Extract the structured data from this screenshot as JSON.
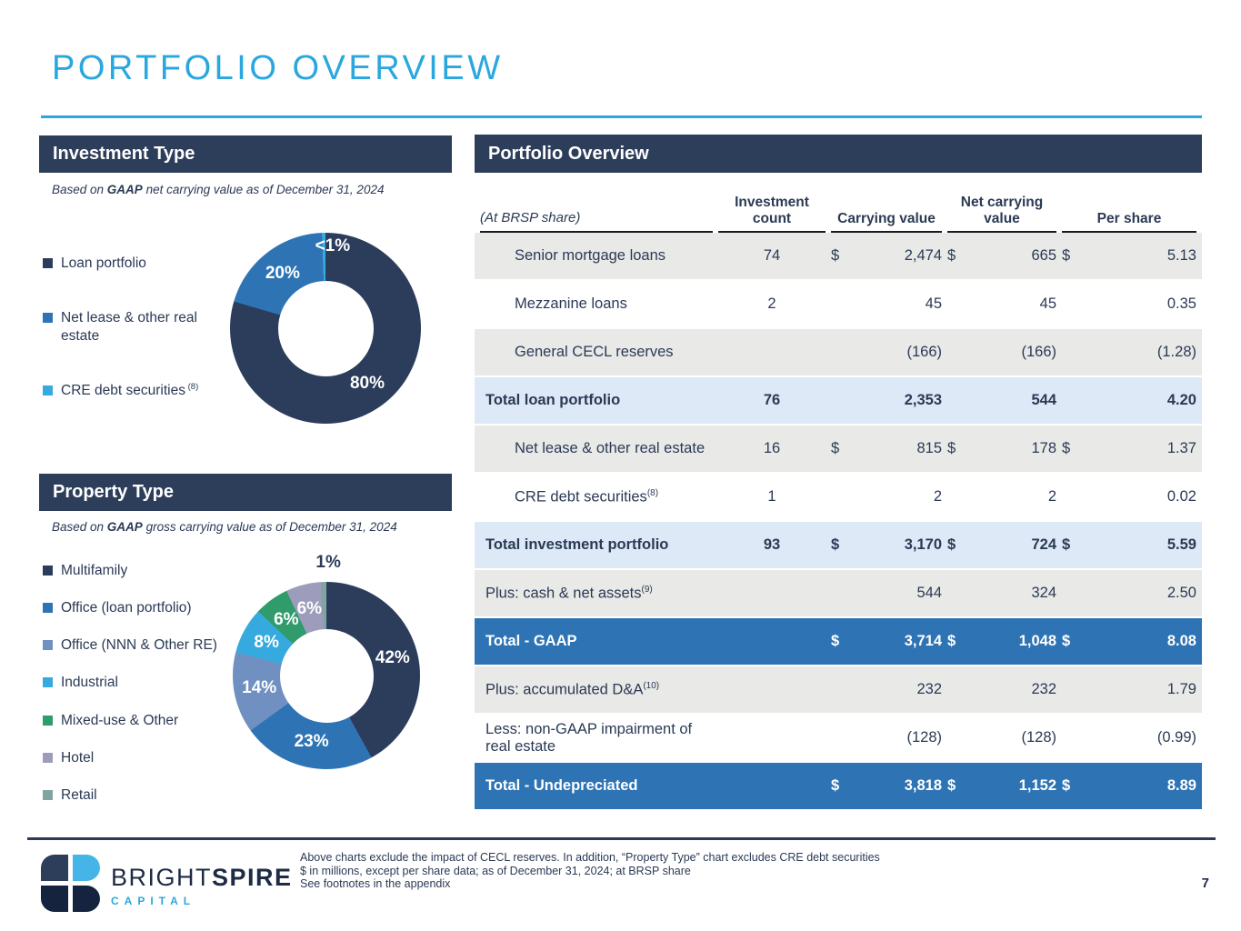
{
  "slide": {
    "title": "PORTFOLIO OVERVIEW"
  },
  "sections": {
    "investment_type": {
      "header": "Investment Type",
      "subtitle": {
        "prefix": "Based on ",
        "bold": "GAAP",
        "suffix": " net carrying value as of December 31, 2024"
      }
    },
    "property_type": {
      "header": "Property Type",
      "subtitle": {
        "prefix": "Based on ",
        "bold": "GAAP",
        "suffix": " gross carrying value as of December 31, 2024"
      }
    },
    "portfolio_overview": {
      "header": "Portfolio Overview"
    }
  },
  "chart_data": [
    {
      "type": "pie",
      "variant": "donut",
      "title": "Investment Type",
      "unit": "percent of GAAP net carrying value, as of December 31, 2024",
      "legend_position": "left",
      "segments": [
        {
          "label": "Loan portfolio",
          "value": 80,
          "display": "80%",
          "color": "#2c3d5c",
          "label_color": "#ffffff"
        },
        {
          "label": "Net lease & other real estate",
          "value": 20,
          "display": "20%",
          "color": "#2e74b5",
          "label_color": "#ffffff"
        },
        {
          "label": "CRE debt securities",
          "sup": "(8)",
          "value": 0.6,
          "display": "<1%",
          "color": "#36aadf",
          "label_color": "#ffffff",
          "label_angle": 5,
          "label_radius": 0.86
        }
      ]
    },
    {
      "type": "pie",
      "variant": "donut",
      "title": "Property Type",
      "unit": "percent of GAAP gross carrying value, as of December 31, 2024",
      "legend_position": "left",
      "segments": [
        {
          "label": "Multifamily",
          "value": 42,
          "display": "42%",
          "color": "#2c3d5c",
          "label_color": "#ffffff"
        },
        {
          "label": "Office (loan portfolio)",
          "value": 23,
          "display": "23%",
          "color": "#2e74b5",
          "label_color": "#ffffff"
        },
        {
          "label": "Office (NNN & Other RE)",
          "value": 14,
          "display": "14%",
          "color": "#7090c2",
          "label_color": "#ffffff"
        },
        {
          "label": "Industrial",
          "value": 8,
          "display": "8%",
          "color": "#36aadf",
          "label_color": "#ffffff"
        },
        {
          "label": "Mixed-use & Other",
          "value": 6,
          "display": "6%",
          "color": "#309b6b",
          "label_color": "#ffffff"
        },
        {
          "label": "Hotel",
          "value": 6,
          "display": "6%",
          "color": "#9e9cbc",
          "label_color": "#ffffff"
        },
        {
          "label": "Retail",
          "value": 1,
          "display": "1%",
          "color": "#80a5a1",
          "label_color": "#2c3d5c",
          "label_angle": 1,
          "label_radius": 1.2
        }
      ]
    }
  ],
  "table": {
    "corner_label": "(At BRSP share)",
    "columns": [
      "Investment count",
      "Carrying value",
      "Net carrying value",
      "Per share"
    ],
    "rows": [
      {
        "label": "Senior mortgage loans",
        "sup": "",
        "indent": true,
        "style": "gray",
        "count": "74",
        "dollar": true,
        "values": [
          "2,474",
          "665",
          "5.13"
        ]
      },
      {
        "label": "Mezzanine loans",
        "sup": "",
        "indent": true,
        "style": "white",
        "count": "2",
        "dollar": false,
        "values": [
          "45",
          "45",
          "0.35"
        ]
      },
      {
        "label": "General CECL reserves",
        "sup": "",
        "indent": true,
        "style": "gray",
        "count": "",
        "dollar": false,
        "values": [
          "(166)",
          "(166)",
          "(1.28)"
        ]
      },
      {
        "label": "Total loan portfolio",
        "sup": "",
        "indent": false,
        "style": "subtotal",
        "count": "76",
        "dollar": false,
        "values": [
          "2,353",
          "544",
          "4.20"
        ]
      },
      {
        "label": "Net lease & other real estate",
        "sup": "",
        "indent": true,
        "style": "gray",
        "count": "16",
        "dollar": true,
        "values": [
          "815",
          "178",
          "1.37"
        ]
      },
      {
        "label": "CRE debt securities",
        "sup": "(8)",
        "indent": true,
        "style": "white",
        "count": "1",
        "dollar": false,
        "values": [
          "2",
          "2",
          "0.02"
        ]
      },
      {
        "label": "Total investment portfolio",
        "sup": "",
        "indent": false,
        "style": "subtotal",
        "count": "93",
        "dollar": true,
        "values": [
          "3,170",
          "724",
          "5.59"
        ]
      },
      {
        "label": "Plus: cash & net assets",
        "sup": "(9)",
        "indent": false,
        "style": "gray",
        "count": "",
        "dollar": false,
        "values": [
          "544",
          "324",
          "2.50"
        ]
      },
      {
        "label": "Total - GAAP",
        "sup": "",
        "indent": false,
        "style": "total",
        "count": "",
        "dollar": true,
        "values": [
          "3,714",
          "1,048",
          "8.08"
        ]
      },
      {
        "label": "Plus: accumulated D&A",
        "sup": "(10)",
        "indent": false,
        "style": "gray",
        "count": "",
        "dollar": false,
        "values": [
          "232",
          "232",
          "1.79"
        ]
      },
      {
        "label": "Less: non-GAAP impairment of real estate",
        "sup": "",
        "indent": false,
        "style": "white",
        "count": "",
        "dollar": false,
        "values": [
          "(128)",
          "(128)",
          "(0.99)"
        ]
      },
      {
        "label": "Total - Undepreciated",
        "sup": "",
        "indent": false,
        "style": "total",
        "count": "",
        "dollar": true,
        "values": [
          "3,818",
          "1,152",
          "8.89"
        ]
      }
    ]
  },
  "footer": {
    "brand": {
      "part1": "BRIGHT",
      "part2": "SPIRE",
      "subtitle": "CAPITAL"
    },
    "notes": [
      "Above charts exclude the impact of CECL reserves. In addition, “Property Type” chart excludes CRE debt securities",
      "$ in millions, except per share data; as of December 31, 2024; at BRSP share",
      "See footnotes in the appendix"
    ],
    "page_number": "7"
  },
  "colors": {
    "accent_blue": "#2aa7df",
    "navy": "#2d3e5b",
    "medium_blue": "#2e74b5",
    "row_gray": "#e9e9e7",
    "row_light_blue": "#dde9f6"
  }
}
